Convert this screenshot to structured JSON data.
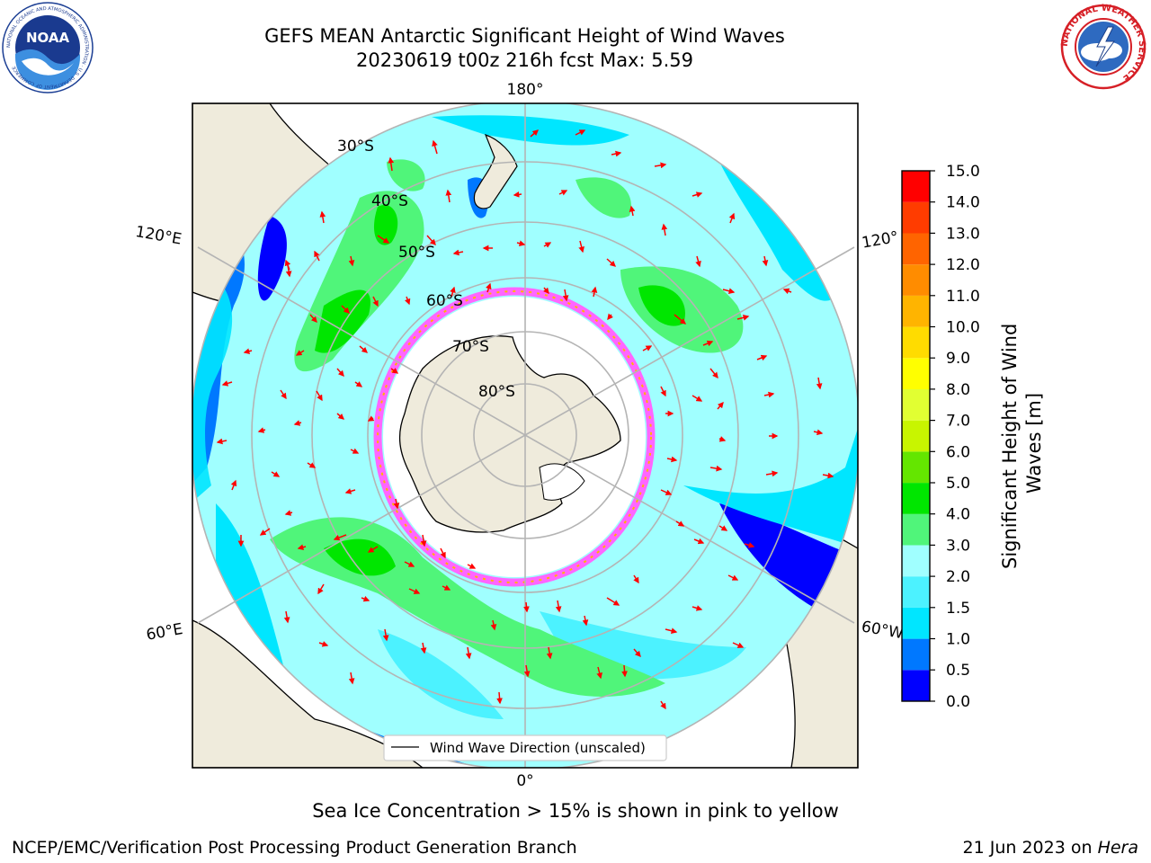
{
  "header": {
    "title_line1": "GEFS MEAN Antarctic Significant Height of Wind Waves",
    "title_line2": "20230619 t00z 216h fcst   Max: 5.59",
    "noaa_logo_text": "NOAA",
    "noaa_ring_text": "NATIONAL OCEANIC AND ATMOSPHERIC ADMINISTRATION · U.S. DEPARTMENT OF COMMERCE",
    "nws_ring_text": "NATIONAL WEATHER SERVICE"
  },
  "map": {
    "projection": "south-polar-stereographic",
    "longitude_labels": {
      "top": "180°",
      "bottom": "0°",
      "upper_left": "120°E",
      "lower_left": "60°E",
      "upper_right": "120°",
      "lower_right": "60°W"
    },
    "latitude_labels": [
      "30°S",
      "40°S",
      "50°S",
      "60°S",
      "70°S",
      "80°S"
    ],
    "legend_label": "Wind Wave Direction (unscaled)",
    "colors": {
      "land": "#efebdc",
      "sea_ice": "#ffffff",
      "arrow": "#ff0000",
      "grid": "#b4b4b4"
    }
  },
  "colorbar": {
    "label": "Significant Height of Wind Waves [m]",
    "ticks": [
      "15.0",
      "14.0",
      "13.0",
      "12.0",
      "11.0",
      "10.0",
      "9.0",
      "8.0",
      "7.0",
      "6.0",
      "5.0",
      "4.0",
      "3.0",
      "2.0",
      "1.5",
      "1.0",
      "0.5",
      "0.0"
    ],
    "colors_bottom_to_top": [
      "#0000ff",
      "#0078ff",
      "#00e6ff",
      "#4cf2ff",
      "#a0ffff",
      "#50f57a",
      "#00e600",
      "#64e600",
      "#c8f500",
      "#e1ff32",
      "#ffff00",
      "#ffdc00",
      "#ffb400",
      "#ff8c00",
      "#ff6400",
      "#ff3c00",
      "#ff0000"
    ]
  },
  "caption": "Sea Ice Concentration > 15% is shown in pink to yellow",
  "footer": {
    "left": "NCEP/EMC/Verification Post Processing Product Generation Branch",
    "right_date": "21 Jun 2023 on ",
    "right_machine": "Hera"
  }
}
